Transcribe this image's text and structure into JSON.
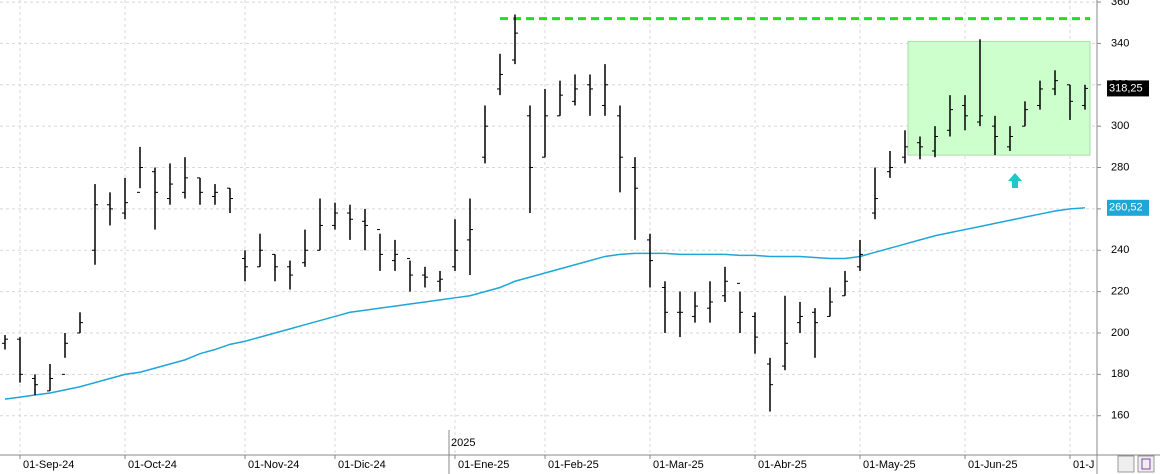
{
  "chart_data": {
    "type": "ohlc",
    "categories": [
      null,
      "01-Sep-24",
      null,
      null,
      null,
      null,
      null,
      null,
      "01-Oct-24",
      null,
      null,
      null,
      null,
      null,
      null,
      null,
      "01-Nov-24",
      null,
      null,
      null,
      null,
      null,
      "01-Dic-24",
      null,
      null,
      null,
      null,
      null,
      null,
      null,
      "01-Ene-25",
      null,
      null,
      null,
      null,
      null,
      "01-Feb-25",
      null,
      null,
      null,
      null,
      null,
      null,
      "01-Mar-25",
      null,
      null,
      null,
      null,
      null,
      null,
      "01-Abr-25",
      null,
      null,
      null,
      null,
      null,
      null,
      "01-May-25",
      null,
      null,
      null,
      null,
      null,
      null,
      "01-Jun-25",
      null,
      null,
      null,
      null,
      null,
      null,
      "01-J",
      null
    ],
    "year_label": "2025",
    "ohlc": {
      "color": "#000000",
      "open": [
        195,
        197,
        178,
        172,
        180,
        200,
        240,
        262,
        258,
        268,
        278,
        265,
        268,
        275,
        266,
        270,
        236,
        232,
        238,
        232,
        234,
        240,
        252,
        258,
        254,
        250,
        235,
        236,
        228,
        225,
        232,
        245,
        285,
        318,
        332,
        305,
        285,
        305,
        312,
        320,
        310,
        305,
        280,
        245,
        222,
        210,
        208,
        212,
        218,
        224,
        208,
        185,
        184,
        205,
        210,
        208,
        218,
        232,
        258,
        278,
        285,
        292,
        288,
        298,
        310,
        302,
        300,
        290,
        300,
        310,
        318,
        320,
        310
      ],
      "high": [
        199,
        198,
        180,
        185,
        200,
        210,
        272,
        268,
        275,
        290,
        280,
        282,
        285,
        275,
        272,
        270,
        240,
        248,
        238,
        235,
        250,
        265,
        263,
        262,
        260,
        248,
        245,
        235,
        232,
        230,
        255,
        265,
        310,
        335,
        354,
        310,
        318,
        322,
        325,
        325,
        330,
        310,
        285,
        248,
        225,
        220,
        220,
        225,
        232,
        220,
        210,
        188,
        218,
        215,
        212,
        222,
        230,
        245,
        280,
        288,
        298,
        295,
        300,
        315,
        315,
        342,
        305,
        300,
        312,
        322,
        327,
        320,
        320
      ],
      "low": [
        192,
        176,
        170,
        172,
        188,
        200,
        233,
        252,
        255,
        270,
        250,
        262,
        265,
        262,
        262,
        258,
        225,
        232,
        225,
        221,
        232,
        240,
        250,
        245,
        240,
        230,
        230,
        220,
        222,
        220,
        230,
        228,
        282,
        315,
        330,
        258,
        285,
        305,
        310,
        305,
        305,
        268,
        245,
        222,
        200,
        198,
        205,
        205,
        215,
        200,
        190,
        162,
        182,
        200,
        188,
        208,
        218,
        230,
        255,
        275,
        282,
        284,
        285,
        295,
        298,
        300,
        286,
        288,
        300,
        308,
        315,
        303,
        308
      ],
      "close": [
        197,
        180,
        175,
        178,
        195,
        205,
        262,
        260,
        263,
        280,
        268,
        272,
        275,
        268,
        268,
        265,
        232,
        240,
        232,
        228,
        240,
        252,
        258,
        255,
        252,
        238,
        238,
        228,
        227,
        226,
        240,
        250,
        300,
        325,
        345,
        280,
        305,
        315,
        318,
        318,
        320,
        285,
        270,
        235,
        210,
        210,
        213,
        215,
        225,
        210,
        198,
        175,
        195,
        208,
        205,
        215,
        225,
        238,
        265,
        280,
        290,
        290,
        295,
        308,
        305,
        305,
        295,
        295,
        308,
        318,
        322,
        312,
        318.25
      ],
      "last_label": "318,25"
    },
    "moving_average": {
      "color": "#1ea6d9",
      "values": [
        168,
        169,
        170,
        171,
        172.5,
        174,
        176,
        178,
        180,
        181,
        183,
        185,
        187,
        190,
        192,
        194.5,
        196,
        198,
        200,
        202,
        204,
        206,
        208,
        210,
        211,
        212,
        213,
        214,
        215,
        216,
        217,
        218,
        220,
        222,
        225,
        227,
        229,
        231,
        233,
        235,
        237,
        238,
        238.5,
        238.5,
        238.5,
        238,
        238,
        238,
        238,
        237.5,
        237.5,
        237,
        237,
        237,
        236.5,
        236,
        236,
        237,
        239,
        241,
        243,
        245,
        247,
        248.5,
        250,
        251.5,
        253,
        254.5,
        256,
        257.5,
        259,
        260,
        260.52
      ],
      "last_label": "260,52"
    },
    "resistance": {
      "value": 352,
      "color": "#22dd22"
    },
    "zone": {
      "ylim": [
        286,
        341
      ],
      "color": "#ccffcc"
    },
    "ylim": [
      141,
      361
    ],
    "yticks": [
      160,
      180,
      200,
      220,
      240,
      260,
      280,
      300,
      320,
      340,
      360
    ],
    "grid": true
  }
}
